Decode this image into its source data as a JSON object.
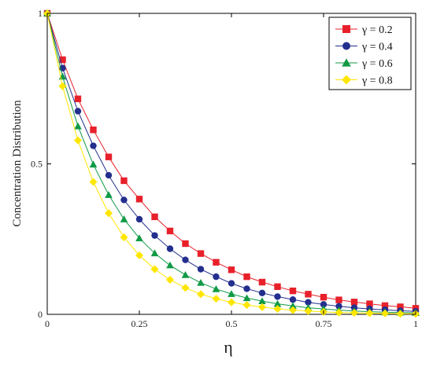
{
  "chart_data": {
    "type": "line",
    "xlabel": "η",
    "ylabel": "Concentration Distribution",
    "xlim": [
      0,
      1
    ],
    "ylim": [
      0,
      1
    ],
    "x_ticks": [
      "0",
      "0.25",
      "0.5",
      "0.75",
      "1"
    ],
    "y_ticks": [
      "0",
      "0.5",
      "1"
    ],
    "grid": false,
    "legend_position": "top-right",
    "x": [
      0,
      0.0417,
      0.0833,
      0.125,
      0.1667,
      0.2083,
      0.25,
      0.2917,
      0.3333,
      0.375,
      0.4167,
      0.4583,
      0.5,
      0.5417,
      0.5833,
      0.625,
      0.6667,
      0.7083,
      0.75,
      0.7917,
      0.8333,
      0.875,
      0.9167,
      0.9583,
      1.0
    ],
    "series": [
      {
        "name": "γ = 0.2",
        "color": "#e8202a",
        "marker": "square",
        "values": [
          1.0,
          0.846,
          0.716,
          0.613,
          0.523,
          0.444,
          0.383,
          0.324,
          0.277,
          0.235,
          0.202,
          0.173,
          0.148,
          0.125,
          0.107,
          0.092,
          0.078,
          0.067,
          0.057,
          0.048,
          0.041,
          0.035,
          0.029,
          0.025,
          0.02
        ]
      },
      {
        "name": "γ = 0.4",
        "color": "#232f8e",
        "marker": "circle",
        "values": [
          1.0,
          0.818,
          0.675,
          0.56,
          0.462,
          0.38,
          0.316,
          0.262,
          0.218,
          0.181,
          0.15,
          0.125,
          0.103,
          0.085,
          0.071,
          0.059,
          0.049,
          0.04,
          0.033,
          0.027,
          0.022,
          0.018,
          0.015,
          0.012,
          0.01
        ]
      },
      {
        "name": "γ = 0.6",
        "color": "#109a45",
        "marker": "triangle",
        "values": [
          1.0,
          0.79,
          0.625,
          0.498,
          0.397,
          0.316,
          0.253,
          0.203,
          0.163,
          0.131,
          0.105,
          0.084,
          0.068,
          0.054,
          0.044,
          0.035,
          0.028,
          0.022,
          0.018,
          0.014,
          0.011,
          0.009,
          0.007,
          0.006,
          0.005
        ]
      },
      {
        "name": "γ = 0.8",
        "color": "#ffe600",
        "marker": "diamond",
        "values": [
          1.0,
          0.758,
          0.578,
          0.44,
          0.336,
          0.256,
          0.196,
          0.15,
          0.115,
          0.088,
          0.067,
          0.052,
          0.04,
          0.031,
          0.024,
          0.018,
          0.014,
          0.011,
          0.008,
          0.006,
          0.005,
          0.004,
          0.003,
          0.002,
          0.002
        ]
      }
    ]
  }
}
